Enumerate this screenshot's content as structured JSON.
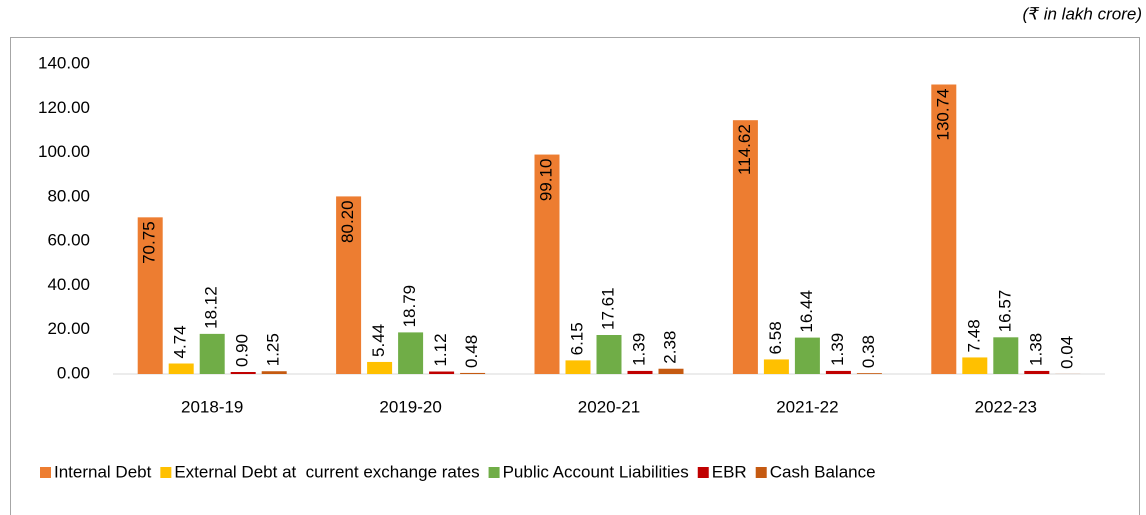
{
  "chart_data": {
    "type": "bar",
    "unit": "(₹ in lakh crore)",
    "categories": [
      "2018-19",
      "2019-20",
      "2020-21",
      "2021-22",
      "2022-23"
    ],
    "series": [
      {
        "name": "Internal Debt",
        "color": "#ed7d31",
        "values": [
          70.75,
          80.2,
          99.1,
          114.62,
          130.74
        ],
        "value_labels": [
          "70.75",
          "80.20",
          "99.10",
          "114.62",
          "130.74"
        ]
      },
      {
        "name": "External Debt at  current exchange rates",
        "color": "#ffc000",
        "values": [
          4.74,
          5.44,
          6.15,
          6.58,
          7.48
        ],
        "value_labels": [
          "4.74",
          "5.44",
          "6.15",
          "6.58",
          "7.48"
        ]
      },
      {
        "name": "Public Account Liabilities",
        "color": "#70ad47",
        "values": [
          18.12,
          18.79,
          17.61,
          16.44,
          16.57
        ],
        "value_labels": [
          "18.12",
          "18.79",
          "17.61",
          "16.44",
          "16.57"
        ]
      },
      {
        "name": "EBR",
        "color": "#c00000",
        "values": [
          0.9,
          1.12,
          1.39,
          1.39,
          1.38
        ],
        "value_labels": [
          "0.90",
          "1.12",
          "1.39",
          "1.39",
          "1.38"
        ]
      },
      {
        "name": "Cash Balance",
        "color": "#c55a11",
        "values": [
          1.25,
          0.48,
          2.38,
          0.38,
          0.04
        ],
        "value_labels": [
          "1.25",
          "0.48",
          "2.38",
          "0.38",
          "0.04"
        ]
      }
    ],
    "ylim": [
      0,
      140
    ],
    "yticks": [
      {
        "value": 0,
        "label": "0.00"
      },
      {
        "value": 20,
        "label": "20.00"
      },
      {
        "value": 40,
        "label": "40.00"
      },
      {
        "value": 60,
        "label": "60.00"
      },
      {
        "value": 80,
        "label": "80.00"
      },
      {
        "value": 100,
        "label": "100.00"
      },
      {
        "value": 120,
        "label": "120.00"
      },
      {
        "value": 140,
        "label": "140.00"
      }
    ],
    "grid": false,
    "legend": "bottom"
  }
}
